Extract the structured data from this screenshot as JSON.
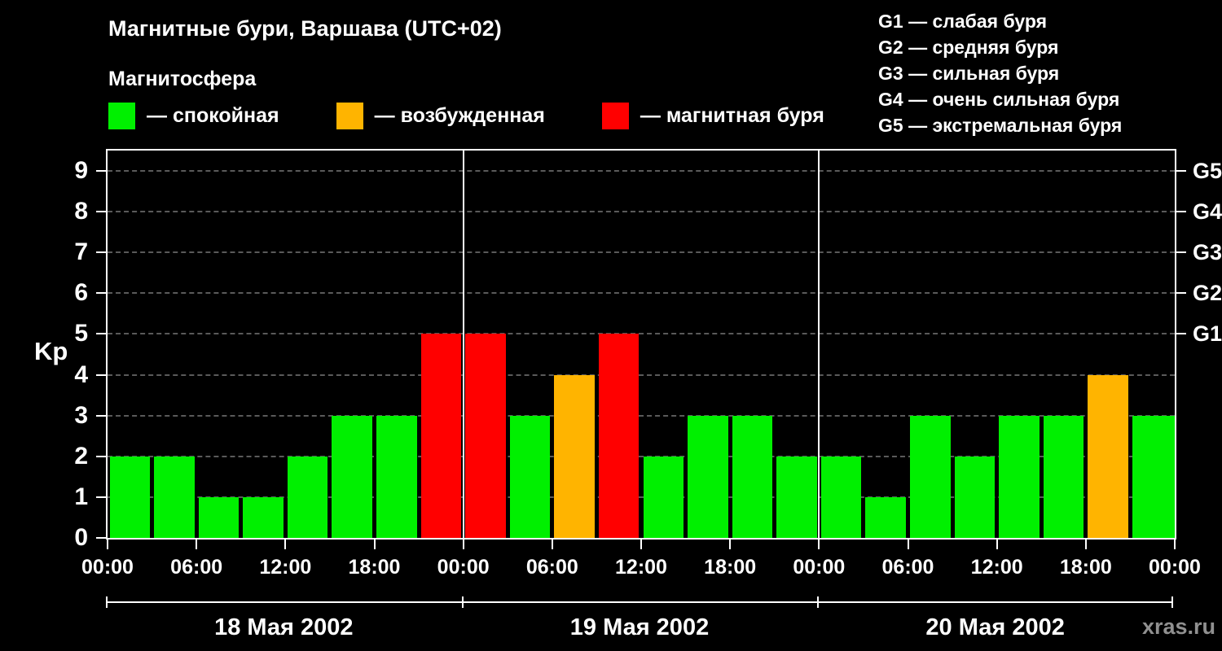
{
  "chart_data": {
    "type": "bar",
    "title": "Магнитные бури, Варшава (UTC+02)",
    "subtitle": "Магнитосфера",
    "ylabel": "Kp",
    "ylim": [
      0,
      9.5
    ],
    "yticks": [
      0,
      1,
      2,
      3,
      4,
      5,
      6,
      7,
      8,
      9
    ],
    "grid": {
      "horizontal_dashed_at": [
        1,
        2,
        3,
        4,
        5,
        6,
        7,
        8,
        9
      ]
    },
    "right_axis": [
      {
        "label": "G1",
        "value": 5
      },
      {
        "label": "G2",
        "value": 6
      },
      {
        "label": "G3",
        "value": 7
      },
      {
        "label": "G4",
        "value": 8
      },
      {
        "label": "G5",
        "value": 9
      }
    ],
    "x_tick_labels": [
      "00:00",
      "06:00",
      "12:00",
      "18:00",
      "00:00",
      "06:00",
      "12:00",
      "18:00",
      "00:00",
      "06:00",
      "12:00",
      "18:00",
      "00:00"
    ],
    "bar_interval_hours": 3,
    "colors": {
      "quiet": "#00f000",
      "active": "#ffb400",
      "storm": "#ff0000"
    },
    "legend": [
      {
        "state": "quiet",
        "color": "#00f000",
        "label": "— спокойная"
      },
      {
        "state": "active",
        "color": "#ffb400",
        "label": "— возбужденная"
      },
      {
        "state": "storm",
        "color": "#ff0000",
        "label": "— магнитная буря"
      }
    ],
    "storm_scale_legend": [
      "G1 — слабая буря",
      "G2 — средняя буря",
      "G3 — сильная буря",
      "G4 — очень сильная буря",
      "G5 — экстремальная буря"
    ],
    "days": [
      {
        "date": "18 Мая 2002",
        "bars": [
          {
            "kp": 2,
            "state": "quiet"
          },
          {
            "kp": 2,
            "state": "quiet"
          },
          {
            "kp": 1,
            "state": "quiet"
          },
          {
            "kp": 1,
            "state": "quiet"
          },
          {
            "kp": 2,
            "state": "quiet"
          },
          {
            "kp": 3,
            "state": "quiet"
          },
          {
            "kp": 3,
            "state": "quiet"
          },
          {
            "kp": 5,
            "state": "storm"
          }
        ]
      },
      {
        "date": "19 Мая 2002",
        "bars": [
          {
            "kp": 5,
            "state": "storm"
          },
          {
            "kp": 3,
            "state": "quiet"
          },
          {
            "kp": 4,
            "state": "active"
          },
          {
            "kp": 5,
            "state": "storm"
          },
          {
            "kp": 2,
            "state": "quiet"
          },
          {
            "kp": 3,
            "state": "quiet"
          },
          {
            "kp": 3,
            "state": "quiet"
          },
          {
            "kp": 2,
            "state": "quiet"
          }
        ]
      },
      {
        "date": "20 Мая 2002",
        "bars": [
          {
            "kp": 2,
            "state": "quiet"
          },
          {
            "kp": 1,
            "state": "quiet"
          },
          {
            "kp": 3,
            "state": "quiet"
          },
          {
            "kp": 2,
            "state": "quiet"
          },
          {
            "kp": 3,
            "state": "quiet"
          },
          {
            "kp": 3,
            "state": "quiet"
          },
          {
            "kp": 4,
            "state": "active"
          },
          {
            "kp": 3,
            "state": "quiet"
          }
        ]
      }
    ],
    "partial_last_bar": {
      "kp": 3,
      "state": "quiet"
    },
    "watermark": "xras.ru"
  }
}
